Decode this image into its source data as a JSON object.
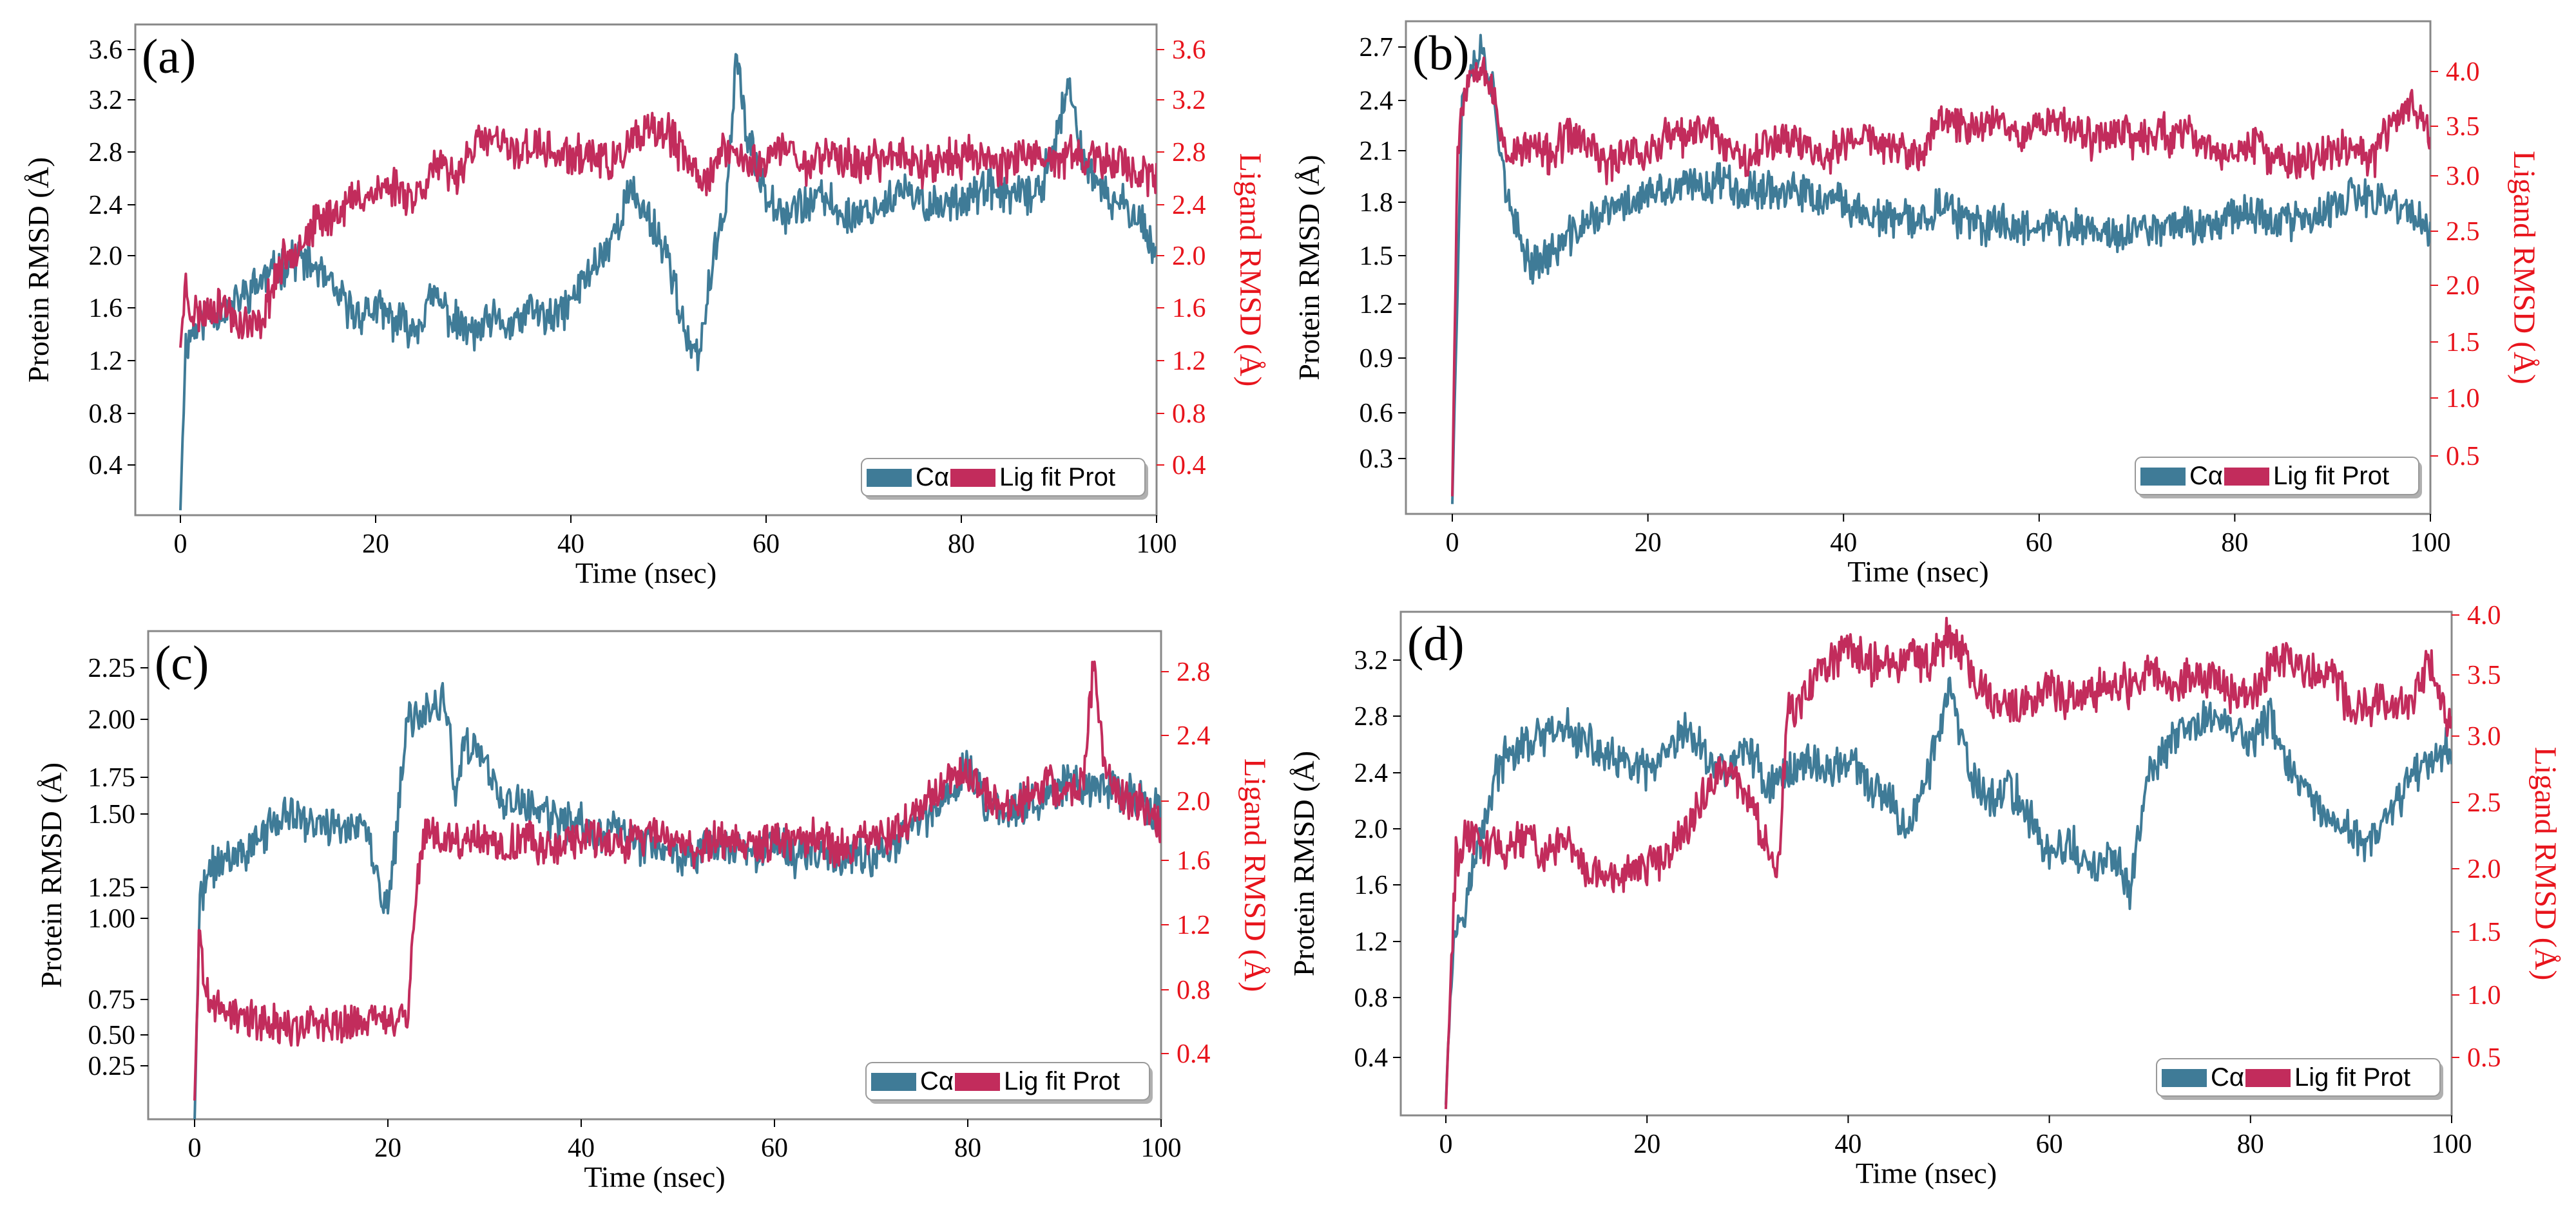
{
  "colors": {
    "calpha": "#3f7b97",
    "ligand": "#c22c5c",
    "left_axis": "#000000",
    "right_axis": "#e8141c",
    "frame": "#888888"
  },
  "chart_data": [
    {
      "type": "line",
      "panel_label": "(a)",
      "xlabel": "Time (nsec)",
      "ylabel_left": "Protein RMSD (Å)",
      "ylabel_right": "Ligand RMSD (Å)",
      "xlim": [
        -5,
        100
      ],
      "ylim_left": [
        0,
        3.75
      ],
      "ylim_right": [
        0,
        3.75
      ],
      "xticks": [
        "0",
        "20",
        "40",
        "60",
        "80",
        "100"
      ],
      "yticks_left": [
        "0.4",
        "0.8",
        "1.2",
        "1.6",
        "2.0",
        "2.4",
        "2.8",
        "3.2",
        "3.6"
      ],
      "yticks_right": [
        "0.4",
        "0.8",
        "1.2",
        "1.6",
        "2.0",
        "2.4",
        "2.8",
        "3.2",
        "3.6"
      ],
      "legend": [
        "Cα",
        "Lig fit Prot"
      ],
      "legend_position": "bottom-right",
      "series": [
        {
          "name": "Cα",
          "axis": "left",
          "x": [
            0,
            0.5,
            1,
            2,
            3,
            5,
            8,
            10,
            12,
            14,
            16,
            18,
            20,
            22,
            24,
            26,
            28,
            30,
            32,
            34,
            36,
            38,
            40,
            42,
            44,
            46,
            48,
            50,
            52,
            53,
            54,
            56,
            57,
            58,
            60,
            62,
            64,
            66,
            68,
            70,
            72,
            74,
            76,
            78,
            80,
            82,
            84,
            86,
            88,
            90,
            91,
            92,
            94,
            96,
            98,
            100
          ],
          "values": [
            0.05,
            1.3,
            1.4,
            1.5,
            1.55,
            1.6,
            1.8,
            1.9,
            2.0,
            1.9,
            1.7,
            1.55,
            1.6,
            1.5,
            1.45,
            1.7,
            1.5,
            1.4,
            1.5,
            1.45,
            1.6,
            1.5,
            1.65,
            1.9,
            2.1,
            2.5,
            2.3,
            2.0,
            1.3,
            1.2,
            1.7,
            2.5,
            3.6,
            2.9,
            2.5,
            2.35,
            2.4,
            2.45,
            2.3,
            2.35,
            2.4,
            2.5,
            2.4,
            2.4,
            2.45,
            2.5,
            2.5,
            2.45,
            2.5,
            3.0,
            3.3,
            2.9,
            2.5,
            2.4,
            2.35,
            2.0
          ]
        },
        {
          "name": "Lig fit Prot",
          "axis": "right",
          "x": [
            0,
            0.5,
            1,
            2,
            4,
            6,
            8,
            10,
            12,
            14,
            16,
            18,
            20,
            22,
            24,
            26,
            28,
            30,
            32,
            34,
            36,
            38,
            40,
            42,
            44,
            46,
            48,
            50,
            52,
            54,
            56,
            58,
            60,
            62,
            64,
            66,
            68,
            70,
            72,
            74,
            76,
            78,
            80,
            82,
            84,
            86,
            88,
            90,
            92,
            94,
            96,
            98,
            100
          ],
          "values": [
            1.3,
            1.8,
            1.6,
            1.55,
            1.65,
            1.5,
            1.45,
            1.9,
            2.1,
            2.25,
            2.35,
            2.45,
            2.5,
            2.55,
            2.45,
            2.7,
            2.6,
            2.85,
            2.9,
            2.8,
            2.85,
            2.8,
            2.75,
            2.8,
            2.7,
            2.85,
            2.95,
            2.95,
            2.7,
            2.6,
            2.85,
            2.7,
            2.75,
            2.85,
            2.7,
            2.8,
            2.75,
            2.7,
            2.75,
            2.8,
            2.7,
            2.75,
            2.75,
            2.8,
            2.7,
            2.8,
            2.7,
            2.75,
            2.8,
            2.7,
            2.75,
            2.65,
            2.6
          ]
        }
      ]
    },
    {
      "type": "line",
      "panel_label": "(b)",
      "xlabel": "Time (nsec)",
      "ylabel_left": "Protein RMSD (Å)",
      "ylabel_right": "Ligand RMSD (Å)",
      "xlim": [
        -5,
        100
      ],
      "ylim_left": [
        0,
        2.76
      ],
      "ylim_right": [
        0,
        4.35
      ],
      "xticks": [
        "0",
        "20",
        "40",
        "60",
        "80",
        "100"
      ],
      "yticks_left": [
        "0.3",
        "0.6",
        "0.9",
        "1.2",
        "1.5",
        "1.8",
        "2.1",
        "2.4",
        "2.7"
      ],
      "yticks_right": [
        "0.5",
        "1.0",
        "1.5",
        "2.0",
        "2.5",
        "3.0",
        "3.5",
        "4.0"
      ],
      "legend": [
        "Cα",
        "Lig fit Prot"
      ],
      "legend_position": "bottom-right",
      "series": [
        {
          "name": "Cα",
          "axis": "left",
          "x": [
            0,
            0.5,
            1,
            2,
            3,
            4,
            5,
            6,
            8,
            10,
            12,
            14,
            16,
            18,
            20,
            22,
            24,
            26,
            28,
            30,
            32,
            34,
            36,
            38,
            40,
            42,
            44,
            46,
            48,
            50,
            52,
            54,
            56,
            58,
            60,
            62,
            64,
            66,
            68,
            70,
            72,
            74,
            76,
            78,
            80,
            82,
            84,
            86,
            88,
            90,
            92,
            94,
            96,
            98,
            100
          ],
          "values": [
            0.05,
            1.3,
            2.4,
            2.6,
            2.7,
            2.5,
            2.1,
            1.7,
            1.45,
            1.5,
            1.6,
            1.7,
            1.75,
            1.8,
            1.85,
            1.85,
            1.9,
            1.9,
            1.95,
            1.85,
            1.9,
            1.85,
            1.85,
            1.8,
            1.8,
            1.75,
            1.7,
            1.7,
            1.7,
            1.8,
            1.7,
            1.65,
            1.7,
            1.65,
            1.7,
            1.65,
            1.65,
            1.65,
            1.6,
            1.65,
            1.65,
            1.7,
            1.65,
            1.7,
            1.75,
            1.75,
            1.7,
            1.7,
            1.7,
            1.75,
            1.85,
            1.8,
            1.8,
            1.75,
            1.6
          ]
        },
        {
          "name": "Lig fit Prot",
          "axis": "right",
          "x": [
            0,
            0.5,
            1,
            2,
            3,
            4,
            5,
            6,
            8,
            10,
            12,
            14,
            16,
            18,
            20,
            22,
            24,
            26,
            28,
            30,
            32,
            34,
            36,
            38,
            40,
            42,
            44,
            46,
            48,
            50,
            52,
            54,
            56,
            58,
            60,
            62,
            64,
            66,
            68,
            70,
            72,
            74,
            76,
            78,
            80,
            82,
            84,
            86,
            88,
            90,
            92,
            94,
            96,
            98,
            100
          ],
          "values": [
            0.1,
            3.2,
            3.7,
            4.0,
            4.1,
            3.8,
            3.4,
            3.2,
            3.3,
            3.2,
            3.4,
            3.3,
            3.1,
            3.3,
            3.2,
            3.4,
            3.35,
            3.5,
            3.3,
            3.2,
            3.3,
            3.4,
            3.3,
            3.2,
            3.3,
            3.4,
            3.3,
            3.25,
            3.2,
            3.55,
            3.5,
            3.45,
            3.6,
            3.4,
            3.5,
            3.55,
            3.4,
            3.35,
            3.5,
            3.3,
            3.45,
            3.35,
            3.4,
            3.2,
            3.25,
            3.3,
            3.2,
            3.1,
            3.2,
            3.25,
            3.3,
            3.15,
            3.5,
            3.7,
            3.4
          ]
        }
      ]
    },
    {
      "type": "line",
      "panel_label": "(c)",
      "xlabel": "Time (nsec)",
      "ylabel_left": "Protein RMSD (Å)",
      "ylabel_right": "Ligand RMSD (Å)",
      "xlim": [
        -5,
        100
      ],
      "ylim_left": [
        0,
        2.4
      ],
      "ylim_right": [
        0,
        3.05
      ],
      "xticks": [
        "0",
        "20",
        "40",
        "60",
        "80",
        "100"
      ],
      "yticks_left": [
        "0.25",
        "0.50",
        "0.75",
        "1.00",
        "1.25",
        "1.50",
        "1.75",
        "2.00",
        "2.25"
      ],
      "yticks_right": [
        "0.4",
        "0.8",
        "1.2",
        "1.6",
        "2.0",
        "2.4",
        "2.8"
      ],
      "legend": [
        "Cα",
        "Lig fit Prot"
      ],
      "legend_position": "bottom-right",
      "series": [
        {
          "name": "Cα",
          "axis": "left",
          "x": [
            0,
            0.5,
            1,
            2,
            4,
            6,
            8,
            10,
            12,
            14,
            16,
            18,
            19,
            20,
            21,
            22,
            24,
            26,
            27,
            28,
            30,
            32,
            34,
            36,
            38,
            40,
            42,
            44,
            46,
            48,
            50,
            52,
            54,
            56,
            58,
            60,
            62,
            64,
            66,
            68,
            70,
            72,
            74,
            76,
            78,
            80,
            82,
            84,
            86,
            88,
            90,
            92,
            94,
            96,
            98,
            100
          ],
          "values": [
            0.05,
            1.1,
            1.2,
            1.3,
            1.35,
            1.4,
            1.5,
            1.55,
            1.5,
            1.5,
            1.5,
            1.45,
            1.2,
            1.1,
            1.5,
            2.0,
            2.05,
            2.1,
            1.6,
            1.9,
            1.8,
            1.6,
            1.6,
            1.55,
            1.5,
            1.5,
            1.45,
            1.5,
            1.4,
            1.4,
            1.35,
            1.35,
            1.4,
            1.35,
            1.35,
            1.4,
            1.35,
            1.4,
            1.35,
            1.35,
            1.35,
            1.4,
            1.5,
            1.55,
            1.65,
            1.8,
            1.6,
            1.55,
            1.6,
            1.6,
            1.7,
            1.65,
            1.7,
            1.65,
            1.6,
            1.55
          ]
        },
        {
          "name": "Lig fit Prot",
          "axis": "right",
          "x": [
            0,
            0.5,
            1,
            2,
            4,
            6,
            8,
            10,
            12,
            14,
            16,
            18,
            20,
            21,
            22,
            23,
            24,
            26,
            28,
            30,
            32,
            34,
            36,
            38,
            40,
            42,
            44,
            46,
            48,
            50,
            52,
            54,
            56,
            58,
            60,
            62,
            64,
            66,
            68,
            70,
            72,
            74,
            76,
            78,
            80,
            82,
            84,
            86,
            88,
            90,
            92,
            93,
            94,
            96,
            98,
            100
          ],
          "values": [
            0.1,
            1.2,
            0.8,
            0.7,
            0.65,
            0.6,
            0.6,
            0.55,
            0.6,
            0.55,
            0.6,
            0.6,
            0.65,
            0.6,
            0.6,
            1.5,
            1.8,
            1.75,
            1.7,
            1.75,
            1.7,
            1.75,
            1.7,
            1.7,
            1.75,
            1.75,
            1.7,
            1.75,
            1.8,
            1.7,
            1.7,
            1.75,
            1.75,
            1.7,
            1.75,
            1.7,
            1.75,
            1.7,
            1.7,
            1.75,
            1.8,
            1.9,
            2.0,
            2.1,
            2.2,
            2.0,
            1.95,
            2.0,
            2.1,
            2.0,
            2.1,
            2.9,
            2.2,
            2.0,
            1.95,
            1.8
          ]
        }
      ]
    },
    {
      "type": "line",
      "panel_label": "(d)",
      "xlabel": "Time (nsec)",
      "ylabel_left": "Protein RMSD (Å)",
      "ylabel_right": "Ligand RMSD (Å)",
      "xlim": [
        -5,
        100
      ],
      "ylim_left": [
        0,
        3.5
      ],
      "ylim_right": [
        0,
        4.0
      ],
      "xticks": [
        "0",
        "20",
        "40",
        "60",
        "80",
        "100"
      ],
      "yticks_left": [
        "0.4",
        "0.8",
        "1.2",
        "1.6",
        "2.0",
        "2.4",
        "2.8",
        "3.2"
      ],
      "yticks_right": [
        "0.5",
        "1.0",
        "1.5",
        "2.0",
        "2.5",
        "3.0",
        "3.5",
        "4.0"
      ],
      "legend": [
        "Cα",
        "Lig fit Prot"
      ],
      "legend_position": "bottom-right",
      "series": [
        {
          "name": "Cα",
          "axis": "left",
          "x": [
            0,
            0.5,
            1,
            2,
            3,
            4,
            5,
            6,
            8,
            10,
            12,
            14,
            16,
            18,
            20,
            22,
            24,
            26,
            28,
            30,
            32,
            34,
            36,
            38,
            40,
            42,
            44,
            46,
            48,
            50,
            52,
            54,
            56,
            58,
            60,
            62,
            64,
            66,
            68,
            70,
            72,
            74,
            76,
            78,
            80,
            82,
            84,
            86,
            88,
            90,
            92,
            94,
            96,
            98,
            100
          ],
          "values": [
            0.05,
            1.0,
            1.3,
            1.5,
            1.8,
            2.1,
            2.4,
            2.5,
            2.6,
            2.65,
            2.7,
            2.6,
            2.5,
            2.45,
            2.4,
            2.5,
            2.7,
            2.5,
            2.4,
            2.6,
            2.3,
            2.4,
            2.5,
            2.4,
            2.5,
            2.3,
            2.2,
            2.0,
            2.4,
            3.0,
            2.4,
            2.2,
            2.3,
            2.1,
            1.8,
            1.9,
            1.7,
            1.8,
            1.6,
            2.4,
            2.6,
            2.7,
            2.8,
            2.75,
            2.6,
            2.8,
            2.4,
            2.2,
            2.0,
            2.0,
            1.9,
            2.1,
            2.4,
            2.5,
            2.6
          ]
        },
        {
          "name": "Lig fit Prot",
          "axis": "right",
          "x": [
            0,
            0.5,
            1,
            2,
            4,
            6,
            8,
            10,
            12,
            14,
            16,
            18,
            20,
            22,
            24,
            26,
            28,
            30,
            32,
            33,
            34,
            36,
            38,
            40,
            42,
            44,
            46,
            48,
            50,
            52,
            54,
            56,
            58,
            60,
            62,
            64,
            66,
            68,
            70,
            72,
            74,
            76,
            78,
            80,
            82,
            84,
            86,
            88,
            90,
            92,
            94,
            96,
            98,
            100
          ],
          "values": [
            0.1,
            1.2,
            2.1,
            2.2,
            2.2,
            2.15,
            2.25,
            2.1,
            2.2,
            2.0,
            1.9,
            1.95,
            2.0,
            2.1,
            2.3,
            2.6,
            2.8,
            2.6,
            2.1,
            1.95,
            3.2,
            3.4,
            3.6,
            3.7,
            3.6,
            3.6,
            3.65,
            3.6,
            3.8,
            3.6,
            3.3,
            3.25,
            3.3,
            3.4,
            3.3,
            3.35,
            3.45,
            3.4,
            3.5,
            3.45,
            3.5,
            3.5,
            3.4,
            3.3,
            3.6,
            3.65,
            3.5,
            3.6,
            3.2,
            3.3,
            3.25,
            3.3,
            3.6,
            3.1
          ]
        }
      ]
    }
  ]
}
